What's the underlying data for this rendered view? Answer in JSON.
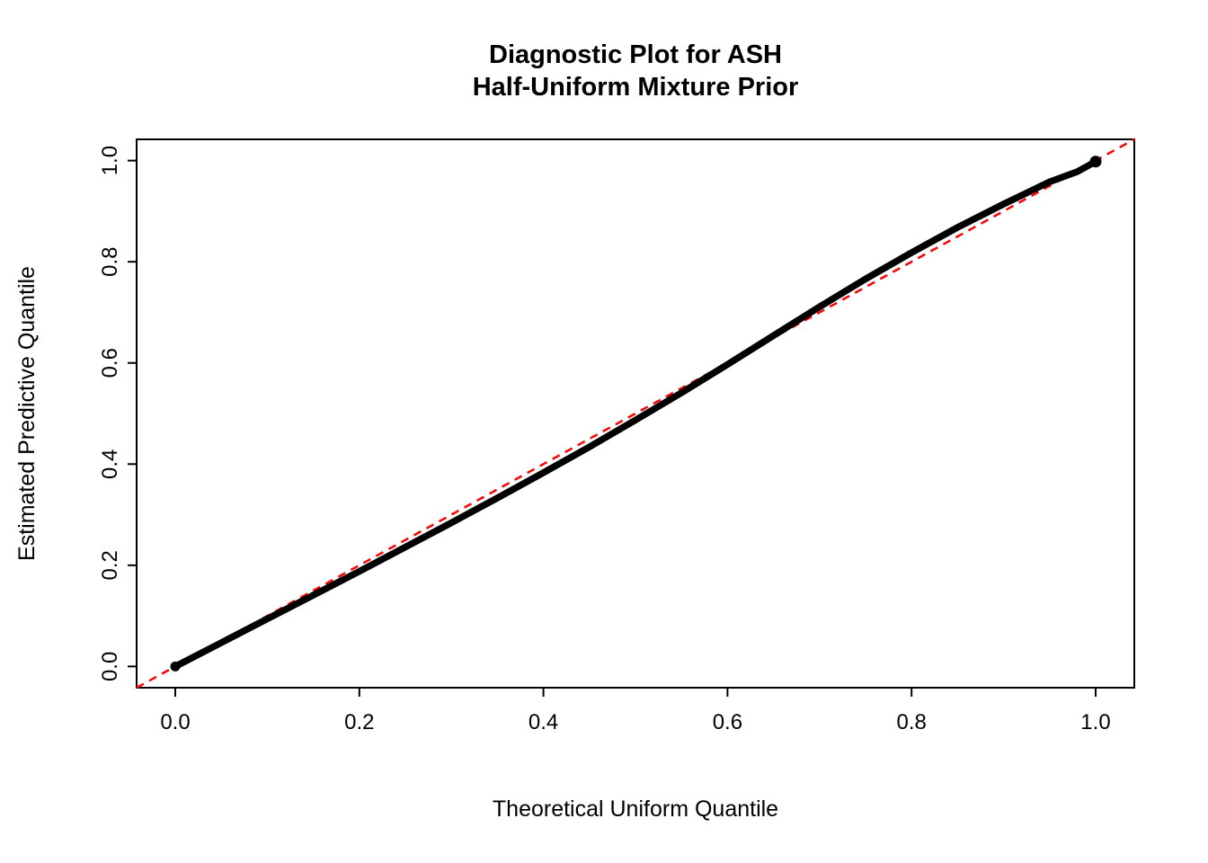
{
  "figure": {
    "title_line1": "Diagnostic Plot for ASH",
    "title_line2": "Half-Uniform Mixture Prior",
    "xlabel": "Theoretical Uniform Quantile",
    "ylabel": "Estimated Predictive Quantile"
  },
  "chart_data": {
    "type": "scatter",
    "title": "Diagnostic Plot for ASH Half-Uniform Mixture Prior",
    "xlabel": "Theoretical Uniform Quantile",
    "ylabel": "Estimated Predictive Quantile",
    "xlim": [
      -0.042,
      1.042
    ],
    "ylim": [
      -0.042,
      1.042
    ],
    "grid": false,
    "legend": "none",
    "x_ticks": [
      0.0,
      0.2,
      0.4,
      0.6,
      0.8,
      1.0
    ],
    "y_ticks": [
      0.0,
      0.2,
      0.4,
      0.6,
      0.8,
      1.0
    ],
    "x_tick_labels": [
      "0.0",
      "0.2",
      "0.4",
      "0.6",
      "0.8",
      "1.0"
    ],
    "y_tick_labels": [
      "0.0",
      "0.2",
      "0.4",
      "0.6",
      "0.8",
      "1.0"
    ],
    "series": [
      {
        "name": "estimated-predictive-quantiles",
        "color": "#000000",
        "style": "dense-points",
        "x": [
          0.0,
          0.05,
          0.1,
          0.15,
          0.2,
          0.25,
          0.3,
          0.35,
          0.4,
          0.45,
          0.5,
          0.55,
          0.6,
          0.65,
          0.7,
          0.75,
          0.8,
          0.85,
          0.9,
          0.95,
          0.98,
          1.0
        ],
        "y": [
          0.0,
          0.047,
          0.094,
          0.141,
          0.188,
          0.236,
          0.284,
          0.333,
          0.383,
          0.434,
          0.487,
          0.541,
          0.597,
          0.654,
          0.711,
          0.766,
          0.818,
          0.868,
          0.914,
          0.958,
          0.978,
          0.998
        ]
      }
    ],
    "reference_line": {
      "name": "identity-line-y-equals-x",
      "color": "#FF0000",
      "style": "dashed",
      "slope": 1,
      "intercept": 0
    }
  }
}
